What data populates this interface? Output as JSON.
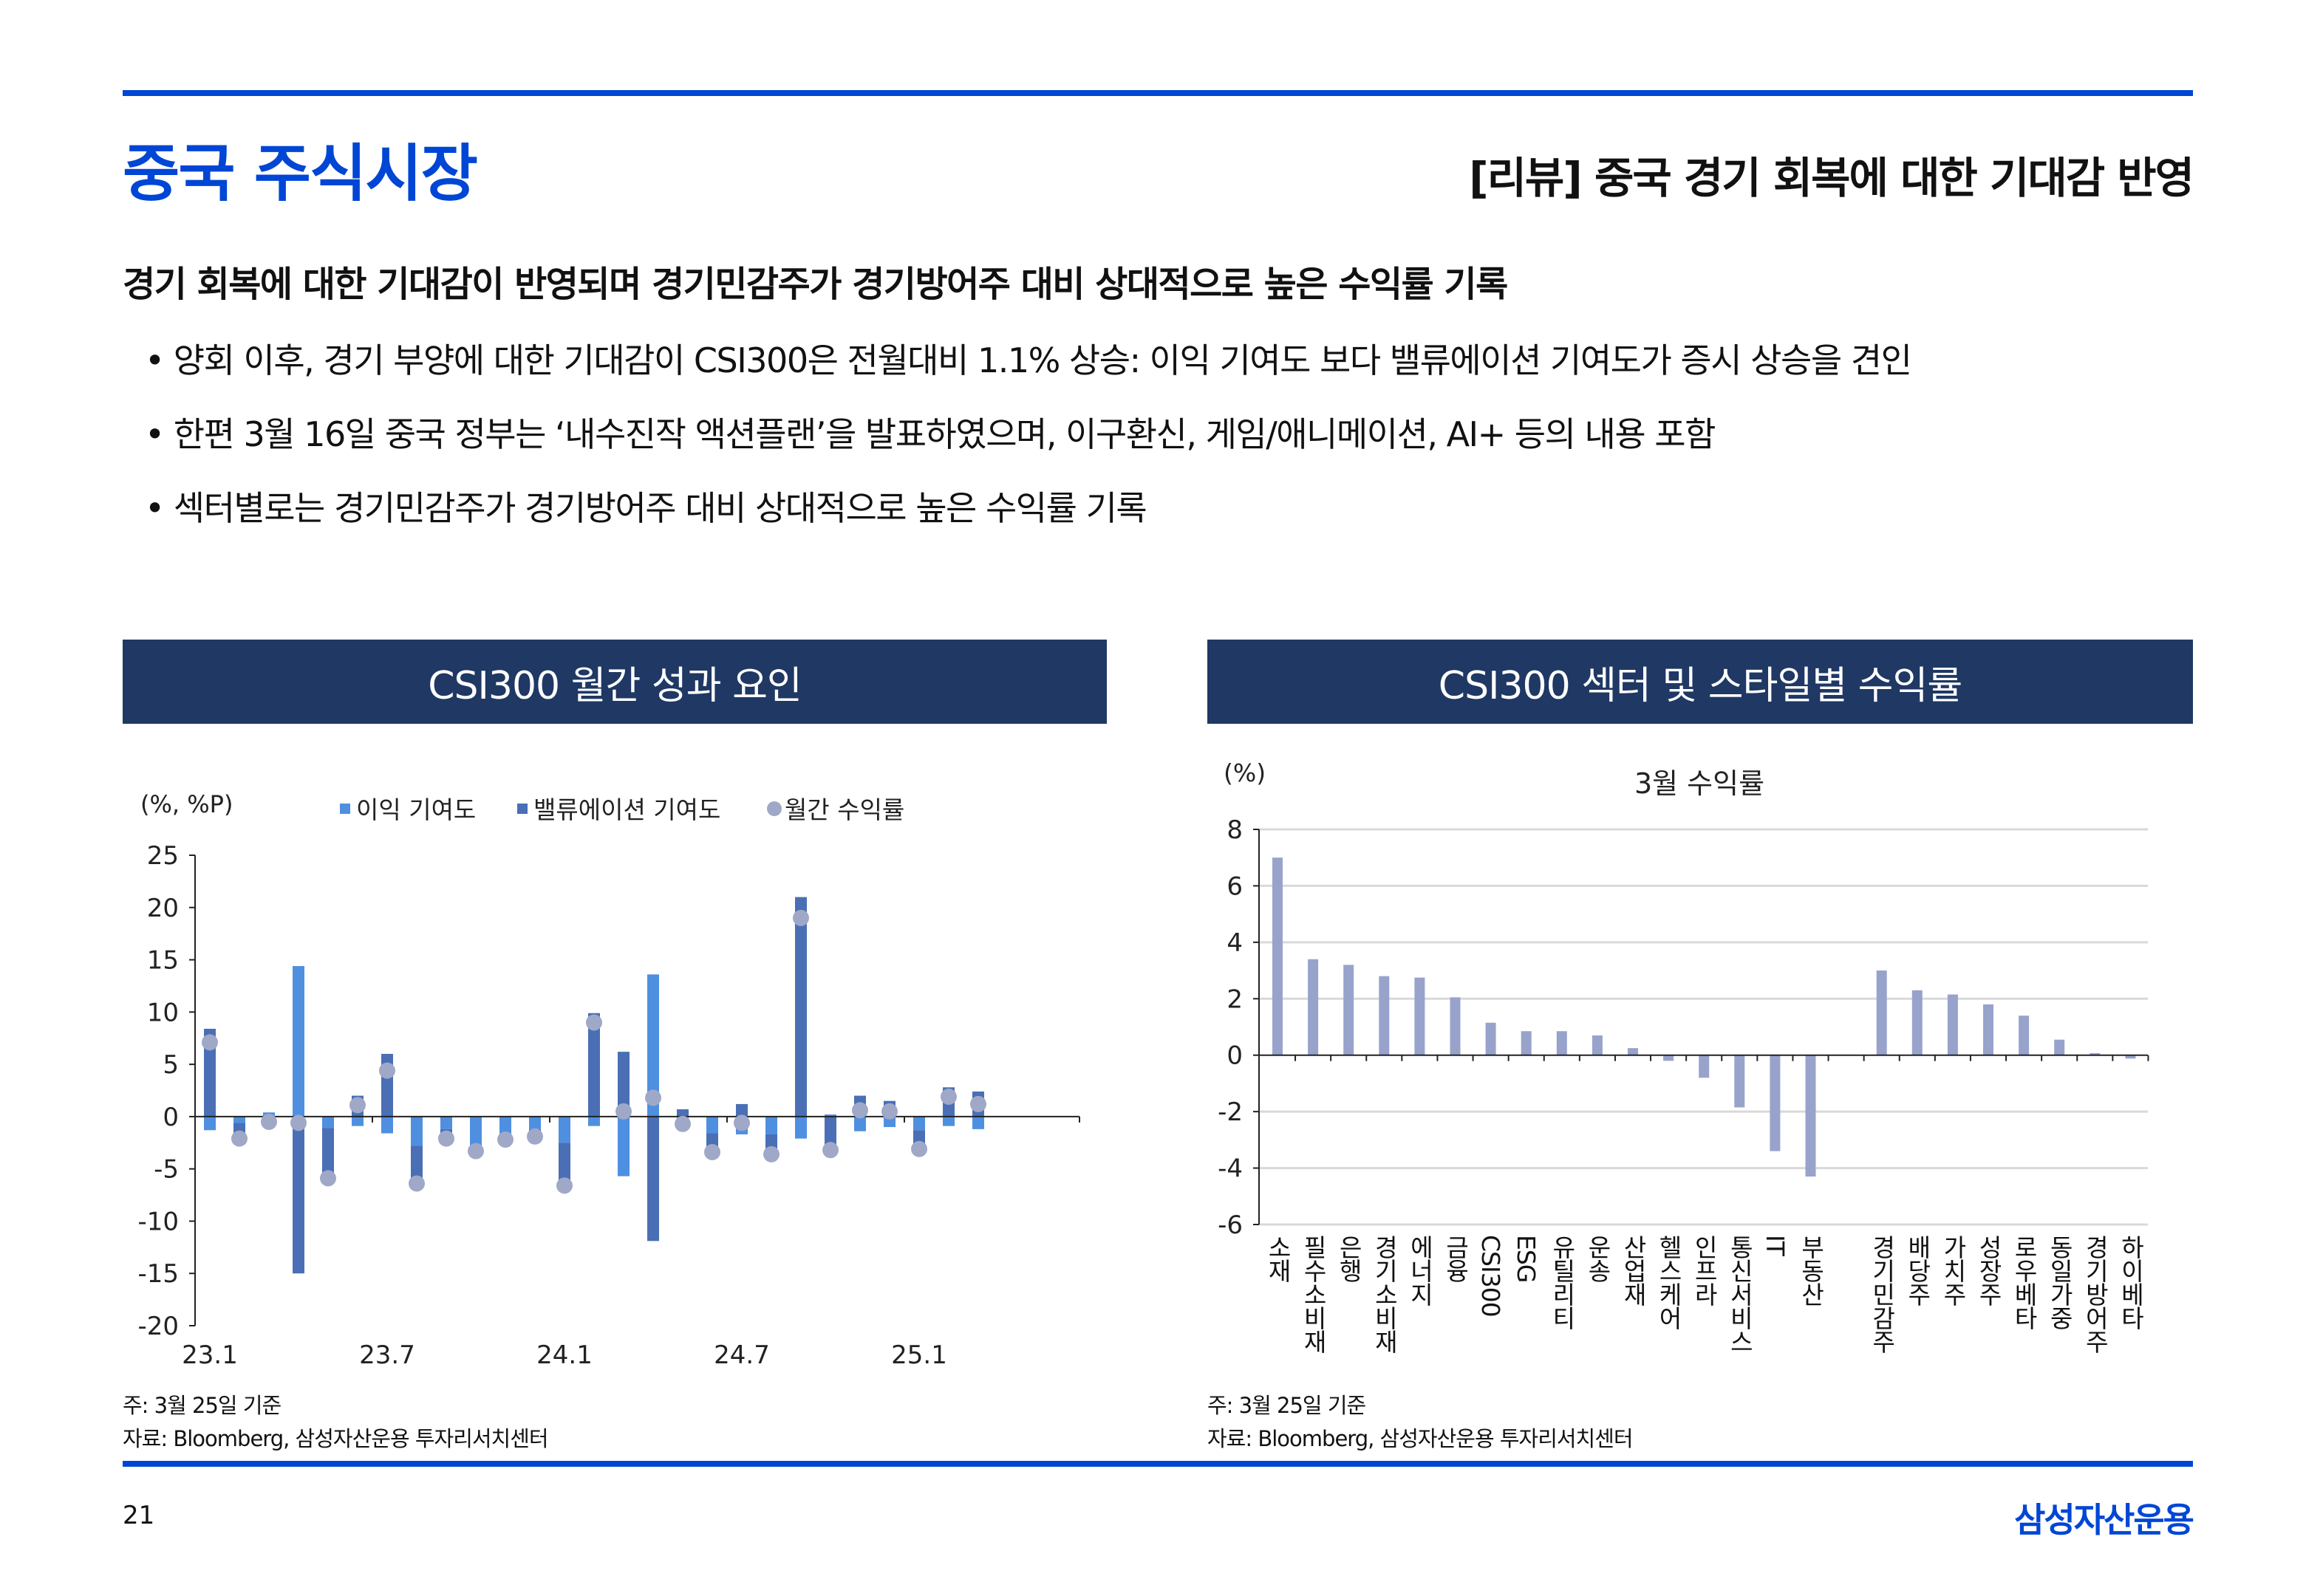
{
  "header": {
    "title": "중국 주식시장",
    "subtitle": "[리뷰] 중국 경기 회복에 대한 기대감 반영"
  },
  "headline": "경기 회복에 대한 기대감이 반영되며 경기민감주가 경기방어주 대비 상대적으로 높은 수익률 기록",
  "bullets": [
    "• 양회 이후, 경기 부양에 대한 기대감이 CSI300은 전월대비 1.1% 상승: 이익 기여도 보다 밸류에이션 기여도가 증시 상승을 견인",
    "• 한편 3월 16일 중국 정부는 ‘내수진작 액션플랜’을 발표하였으며, 이구환신, 게임/애니메이션, AI+  등의 내용 포함",
    "• 섹터별로는 경기민감주가 경기방어주 대비 상대적으로 높은 수익률 기록"
  ],
  "left_panel": {
    "header": "CSI300 월간 성과 요인",
    "note": "주: 3월 25일 기준",
    "source": "자료: Bloomberg, 삼성자산운용 투자리서치센터"
  },
  "right_panel": {
    "header": "CSI300 섹터 및 스타일별 수익률",
    "note": "주: 3월 25일 기준",
    "source": "자료: Bloomberg, 삼성자산운용 투자리서치센터"
  },
  "footer": {
    "page": "21",
    "logo": "삼성자산운용"
  },
  "colors": {
    "brand": "#0046d5",
    "panel_header": "#1f3864",
    "earnings": "#4f8fe0",
    "valuation": "#4a6fb5",
    "return_dot": "#a0a8c8",
    "sector_bar": "#98a3cc"
  },
  "chart_data": [
    {
      "type": "bar",
      "stacked": true,
      "title": "",
      "ylabel": "(%, %P)",
      "ylim": [
        -20,
        25
      ],
      "yticks": [
        25,
        20,
        15,
        10,
        5,
        0,
        -5,
        -10,
        -15,
        -20
      ],
      "xtick_labels": [
        "23.1",
        "23.7",
        "24.1",
        "24.7",
        "25.1"
      ],
      "xtick_every": 6,
      "legend_position": "top",
      "categories": [
        "23.1",
        "23.2",
        "23.3",
        "23.4",
        "23.5",
        "23.6",
        "23.7",
        "23.8",
        "23.9",
        "23.10",
        "23.11",
        "23.12",
        "24.1",
        "24.2",
        "24.3",
        "24.4",
        "24.5",
        "24.6",
        "24.7",
        "24.8",
        "24.9",
        "24.10",
        "24.11",
        "24.12",
        "25.1",
        "25.2",
        "25.3"
      ],
      "series": [
        {
          "name": "이익 기여도",
          "kind": "bar",
          "values": [
            -1.3,
            -0.6,
            0.4,
            14.4,
            -1.1,
            -0.9,
            -1.6,
            -2.8,
            -1.2,
            -3.0,
            -2.0,
            -1.2,
            -2.5,
            -0.9,
            -5.7,
            13.6,
            -0.7,
            -1.6,
            -1.7,
            -1.7,
            -2.1,
            0.2,
            -1.4,
            -1.0,
            -1.3,
            -0.9,
            -1.2
          ]
        },
        {
          "name": "밸류에이션 기여도",
          "kind": "bar",
          "values": [
            8.4,
            -1.5,
            -0.9,
            -15.0,
            -4.8,
            2.0,
            6.0,
            -3.6,
            -0.9,
            -0.3,
            -0.2,
            -0.7,
            -4.1,
            9.9,
            6.2,
            -11.9,
            0.7,
            -1.8,
            1.2,
            -2.0,
            21.0,
            -3.4,
            2.0,
            1.5,
            -1.8,
            2.8,
            2.4
          ]
        },
        {
          "name": "월간 수익률",
          "kind": "dot",
          "values": [
            7.1,
            -2.1,
            -0.5,
            -0.6,
            -5.9,
            1.1,
            4.4,
            -6.4,
            -2.1,
            -3.3,
            -2.2,
            -1.9,
            -6.6,
            9.0,
            0.5,
            1.8,
            -0.7,
            -3.4,
            -0.6,
            -3.6,
            19.0,
            -3.2,
            0.6,
            0.5,
            -3.1,
            1.9,
            1.2
          ]
        }
      ]
    },
    {
      "type": "bar",
      "title": "3월 수익률",
      "ylabel": "(%)",
      "ylim": [
        -6,
        8
      ],
      "yticks": [
        8,
        6,
        4,
        2,
        0,
        -2,
        -4,
        -6
      ],
      "grid": true,
      "categories": [
        "소재",
        "필수소비재",
        "은행",
        "경기소비재",
        "에너지",
        "금융",
        "CSI300",
        "ESG",
        "유틸리티",
        "운송",
        "산업재",
        "헬스케어",
        "인프라",
        "통신서비스",
        "IT",
        "부동산",
        "",
        "경기민감주",
        "배당주",
        "가치주",
        "성장주",
        "로우베타",
        "동일가중",
        "경기방어주",
        "하이베타"
      ],
      "values": [
        7.0,
        3.4,
        3.2,
        2.8,
        2.75,
        2.05,
        1.15,
        0.85,
        0.85,
        0.7,
        0.25,
        -0.2,
        -0.8,
        -1.85,
        -3.4,
        -4.3,
        null,
        3.0,
        2.3,
        2.15,
        1.8,
        1.4,
        0.55,
        0.07,
        -0.12
      ]
    }
  ]
}
